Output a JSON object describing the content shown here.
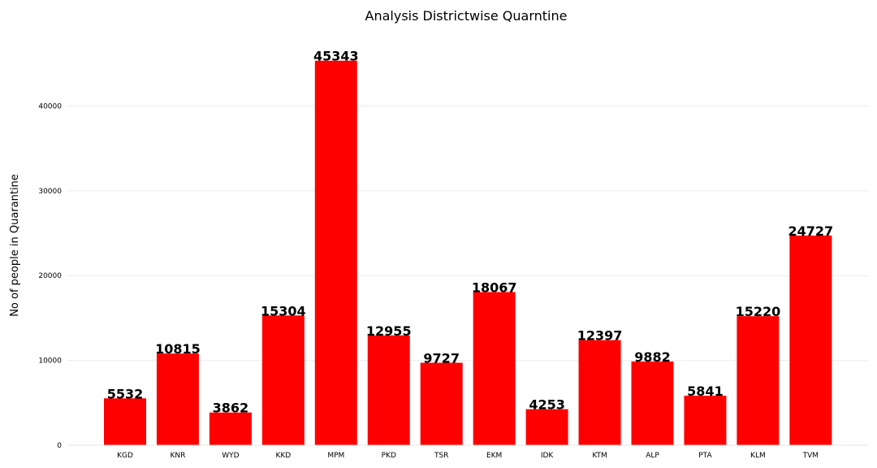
{
  "chart_data": {
    "type": "bar",
    "title": "Analysis Districtwise Quarntine",
    "xlabel": "",
    "ylabel": "No of people in Quarantine",
    "categories": [
      "KGD",
      "KNR",
      "WYD",
      "KKD",
      "MPM",
      "PKD",
      "TSR",
      "EKM",
      "IDK",
      "KTM",
      "ALP",
      "PTA",
      "KLM",
      "TVM"
    ],
    "values": [
      5532,
      10815,
      3862,
      15304,
      45343,
      12955,
      9727,
      18067,
      4253,
      12397,
      9882,
      5841,
      15220,
      24727
    ],
    "value_labels": [
      "5532",
      "10815",
      "3862",
      "15304",
      "45343",
      "12955",
      "9727",
      "18067",
      "4253",
      "12397",
      "9882",
      "5841",
      "15220",
      "24727"
    ],
    "yticks": [
      0,
      10000,
      20000,
      30000,
      40000
    ],
    "ytick_labels": [
      "0",
      "10000",
      "20000",
      "30000",
      "40000"
    ],
    "ylim": [
      0,
      47600
    ],
    "grid": true,
    "legend": false,
    "bar_color": "#ff0000"
  }
}
